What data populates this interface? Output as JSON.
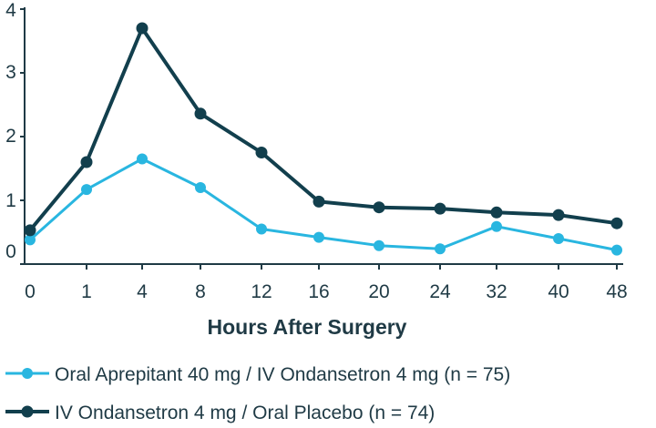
{
  "chart_data": {
    "type": "line",
    "title": "",
    "xlabel": "Hours After Surgery",
    "ylabel": "",
    "categories": [
      "0",
      "1",
      "4",
      "8",
      "12",
      "16",
      "20",
      "24",
      "32",
      "40",
      "48"
    ],
    "ylim": [
      0,
      4
    ],
    "yticks": [
      "0",
      "1",
      "2",
      "3",
      "4"
    ],
    "grid": false,
    "legend_position": "bottom",
    "series": [
      {
        "name": "Oral Aprepitant 40 mg / IV Ondansetron 4 mg (n = 75)",
        "color": "#29b6e0",
        "values": [
          0.38,
          1.17,
          1.65,
          1.2,
          0.55,
          0.42,
          0.29,
          0.24,
          0.59,
          0.4,
          0.22
        ]
      },
      {
        "name": "IV Ondansetron 4 mg / Oral Placebo (n = 74)",
        "color": "#123f4d",
        "values": [
          0.53,
          1.6,
          3.7,
          2.36,
          1.75,
          0.98,
          0.89,
          0.87,
          0.81,
          0.77,
          0.64
        ]
      }
    ]
  }
}
